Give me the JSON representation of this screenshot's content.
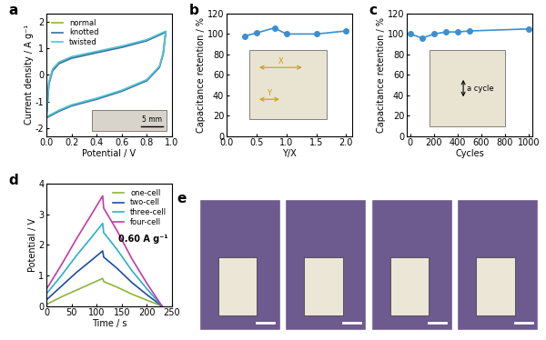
{
  "chart_data": [
    {
      "type": "line",
      "title": "a",
      "x_label": "Potential / V",
      "y_label": "Current density / A g⁻¹",
      "xlim": [
        0,
        1.0
      ],
      "xticks": [
        {
          "value": 0,
          "label": "0.0"
        },
        {
          "value": 0.2,
          "label": "0.2"
        },
        {
          "value": 0.4,
          "label": "0.4"
        },
        {
          "value": 0.6,
          "label": "0.6"
        },
        {
          "value": 0.8,
          "label": "0.8"
        },
        {
          "value": 1.0,
          "label": "1.0"
        }
      ],
      "ylim": [
        -2.3,
        2.3
      ],
      "yticks": [
        -2,
        -1,
        0,
        1,
        2
      ],
      "legend": "upper left",
      "annotations": [
        "5 mm"
      ],
      "series": [
        {
          "name": "normal",
          "color": "#8db53c",
          "x": [
            0,
            0.02,
            0.05,
            0.1,
            0.2,
            0.4,
            0.6,
            0.8,
            0.95,
            0.93,
            0.9,
            0.8,
            0.6,
            0.4,
            0.2,
            0.1,
            0
          ],
          "values": [
            -1.6,
            -0.3,
            0.2,
            0.45,
            0.65,
            0.85,
            1.05,
            1.3,
            1.62,
            0.8,
            0.3,
            -0.2,
            -0.6,
            -0.9,
            -1.15,
            -1.35,
            -1.6
          ]
        },
        {
          "name": "knotted",
          "color": "#3a6e9e",
          "x": [
            0,
            0.02,
            0.05,
            0.1,
            0.2,
            0.4,
            0.6,
            0.8,
            0.95,
            0.93,
            0.9,
            0.8,
            0.6,
            0.4,
            0.2,
            0.1,
            0
          ],
          "values": [
            -1.62,
            -0.35,
            0.15,
            0.42,
            0.62,
            0.83,
            1.03,
            1.28,
            1.6,
            0.78,
            0.28,
            -0.22,
            -0.62,
            -0.92,
            -1.17,
            -1.37,
            -1.62
          ]
        },
        {
          "name": "twisted",
          "color": "#4fc3d8",
          "x": [
            0,
            0.02,
            0.05,
            0.1,
            0.2,
            0.4,
            0.6,
            0.8,
            0.95,
            0.93,
            0.9,
            0.8,
            0.6,
            0.4,
            0.2,
            0.1,
            0
          ],
          "values": [
            -1.58,
            -0.28,
            0.22,
            0.48,
            0.68,
            0.88,
            1.08,
            1.32,
            1.64,
            0.82,
            0.32,
            -0.18,
            -0.58,
            -0.88,
            -1.13,
            -1.33,
            -1.58
          ]
        }
      ]
    },
    {
      "type": "line",
      "title": "b",
      "x_label": "Y/X",
      "y_label": "Capacitance retention / %",
      "xlim": [
        0,
        2.1
      ],
      "xticks": [
        {
          "value": 0,
          "label": "0.0"
        },
        {
          "value": 0.5,
          "label": "0.5"
        },
        {
          "value": 1.0,
          "label": "1.0"
        },
        {
          "value": 1.5,
          "label": "1.5"
        },
        {
          "value": 2.0,
          "label": "2.0"
        }
      ],
      "ylim": [
        0,
        120
      ],
      "yticks": [
        0,
        20,
        40,
        60,
        80,
        100,
        120
      ],
      "annotations": [
        "X",
        "Y"
      ],
      "marker": "o",
      "series": [
        {
          "color": "#3b8fd0",
          "x": [
            0.3,
            0.5,
            0.8,
            1.0,
            1.5,
            2.0
          ],
          "values": [
            98,
            101,
            106,
            100,
            100,
            103
          ]
        }
      ]
    },
    {
      "type": "line",
      "title": "c",
      "x_label": "Cycles",
      "y_label": "Capacitance retention / %",
      "xlim": [
        -30,
        1030
      ],
      "xticks": [
        0,
        200,
        400,
        600,
        800,
        1000
      ],
      "ylim": [
        0,
        120
      ],
      "yticks": [
        0,
        20,
        40,
        60,
        80,
        100,
        120
      ],
      "annotations": [
        "a cycle"
      ],
      "marker": "o",
      "series": [
        {
          "color": "#3b8fd0",
          "x": [
            0,
            100,
            200,
            300,
            400,
            500,
            1000
          ],
          "values": [
            100,
            96,
            100,
            102,
            102,
            103,
            105
          ]
        }
      ]
    },
    {
      "type": "line",
      "title": "d",
      "x_label": "Time / s",
      "y_label": "Potential / V",
      "xlim": [
        0,
        250
      ],
      "xticks": [
        0,
        50,
        100,
        150,
        200,
        250
      ],
      "ylim": [
        0,
        4
      ],
      "yticks": [
        0,
        1,
        2,
        3,
        4
      ],
      "legend": "upper right",
      "annotations": [
        "0.60 A g⁻¹"
      ],
      "x": [
        0,
        30,
        60,
        90,
        112,
        114,
        140,
        170,
        200,
        230
      ],
      "series": [
        {
          "name": "one-cell",
          "color": "#8db53c",
          "values": [
            0.05,
            0.3,
            0.52,
            0.74,
            0.9,
            0.8,
            0.62,
            0.39,
            0.19,
            0.0
          ]
        },
        {
          "name": "two-cell",
          "color": "#1f4e9e",
          "values": [
            0.2,
            0.65,
            1.1,
            1.5,
            1.8,
            1.6,
            1.24,
            0.77,
            0.37,
            0.0
          ]
        },
        {
          "name": "three-cell",
          "color": "#2ab0c8",
          "values": [
            0.4,
            1.0,
            1.65,
            2.25,
            2.7,
            2.4,
            1.86,
            1.16,
            0.56,
            0.0
          ]
        },
        {
          "name": "four-cell",
          "color": "#c23ba0",
          "values": [
            0.55,
            1.35,
            2.2,
            3.0,
            3.6,
            3.2,
            2.48,
            1.55,
            0.74,
            0.0
          ]
        }
      ]
    },
    {
      "type": "image",
      "title": "e"
    }
  ]
}
